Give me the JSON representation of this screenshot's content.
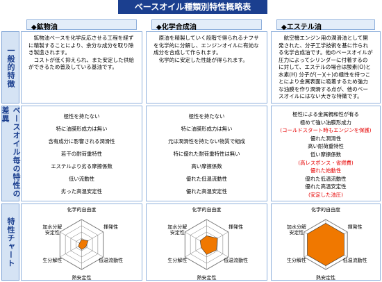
{
  "title": "ベースオイル種類別特性概略表",
  "row_labels": [
    "一般的特徴",
    "ベースオイル毎の特性の差異",
    "特性チャート"
  ],
  "columns": [
    {
      "header": "◆鉱物油",
      "description": "　鉱物油ベースを化学反応させる工程を経ずに精製することにより、余分な成分を取り除き製造されます。\n　コストが低く抑えられ、また安定した供給ができるため普及している基油です。",
      "traits": [
        "極性を持たない",
        "特に油膜形成力は無い",
        "含有成分に影響される潤滑性",
        "若干の耐荷重特性",
        "エステルより劣る摩擦係数",
        "低い流動性",
        "劣った高温安定性"
      ],
      "chart": {
        "axes": [
          "化学的自由度",
          "揮発性",
          "低温流動性",
          "熱安定性",
          "生分解性",
          "加水分解\n安定性"
        ],
        "values": [
          0.2,
          0.3,
          0.2,
          0.2,
          0.15,
          0.1
        ],
        "color": "#f07800"
      }
    },
    {
      "header": "◆化学合成油",
      "description": "　原油を精製していく段階で得られるナフサを化学的に分解し、エンジンオイルに有効な成分を合成して作られます。\n　化学的に安定した性能が得られます。",
      "traits": [
        "極性を持たない",
        "特に油膜形成力は無い",
        "元は潤滑性を持たない物質で組成",
        "特に優れた耐荷重特性は無い",
        "高い摩擦係数",
        "優れた低温流動性",
        "優れた高温安定性"
      ],
      "chart": {
        "axes": [
          "化学的自由度",
          "揮発性",
          "低温流動性",
          "熱安定性",
          "生分解性",
          "加水分解\n安定性"
        ],
        "values": [
          0.35,
          0.5,
          0.45,
          0.4,
          0.25,
          0.3
        ],
        "color": "#f07800"
      }
    },
    {
      "header": "◆エステル油",
      "description": "　航空機エンジン用の潤滑油として開発された、分子工学技術を基に作られる化学合成油です。他のベースオイルが圧力によってシリンダーに付着するのに対して、エステルの場合は酸素(O)と水素(H) 分子が(－)(＋)の極性を持つことにより金属表面に吸着するため強力な油膜を作り潤滑する点が、他のベースオイルにはない大きな特徴です。",
      "traits": [
        "極性による金属親和性が有る",
        "極めて強い油膜形成力",
        {
          "text": "(コールドスタート時もエンジンを保護)",
          "color": "#e60000"
        },
        "優れた潤滑性",
        "高い耐荷重特性",
        "低い摩擦係数",
        {
          "text": "(高レスポンス・省燃費)",
          "color": "#e60000"
        },
        {
          "text": "優れた始動性",
          "color": "#e60000"
        },
        "優れた低温流動性",
        "優れた高温安定性",
        {
          "text": "(安定した油圧)",
          "color": "#e60000"
        }
      ],
      "chart": {
        "axes": [
          "化学的自由度",
          "揮発性",
          "低温流動性",
          "熱安定性",
          "生分解性",
          "加水分解\n安定性"
        ],
        "values": [
          0.85,
          0.85,
          0.85,
          0.85,
          0.85,
          0.85
        ],
        "color": "#f07800"
      }
    }
  ]
}
